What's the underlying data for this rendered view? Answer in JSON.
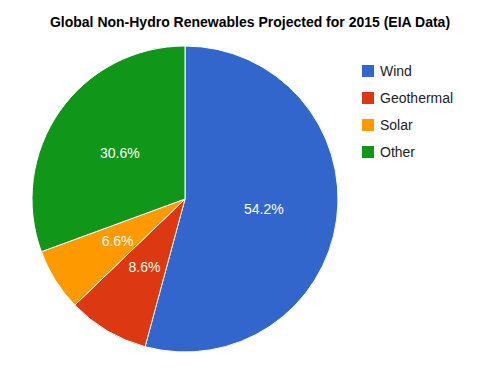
{
  "chart_data": {
    "type": "pie",
    "title": "Global Non-Hydro Renewables Projected for 2015 (EIA Data)",
    "categories": [
      "Wind",
      "Geothermal",
      "Solar",
      "Other"
    ],
    "values": [
      54.2,
      8.6,
      6.6,
      30.6
    ],
    "value_labels": [
      "54.2%",
      "8.6%",
      "6.6%",
      "30.6%"
    ],
    "colors": [
      "#3366cc",
      "#dc3912",
      "#ff9900",
      "#109618"
    ],
    "data_labels": true,
    "legend": "top-right"
  }
}
